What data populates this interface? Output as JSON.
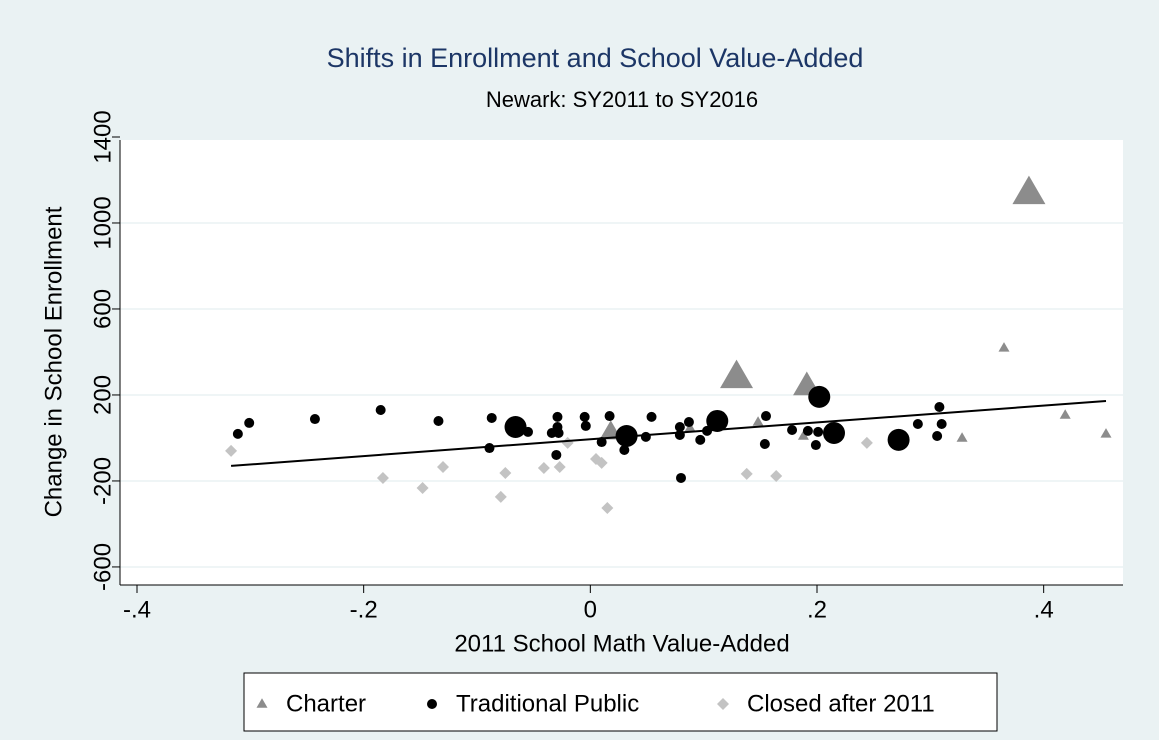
{
  "chart_data": {
    "type": "scatter",
    "title": "Shifts in Enrollment and School Value-Added",
    "subtitle": "Newark: SY2011 to SY2016",
    "x_label": "2011 School Math Value-Added",
    "y_label": "Change in School Enrollment",
    "xlim": [
      -0.415,
      0.47
    ],
    "ylim": [
      -684,
      1386
    ],
    "xticks": [
      {
        "value": -0.4,
        "label": "-.4"
      },
      {
        "value": -0.2,
        "label": "-.2"
      },
      0,
      {
        "value": 0.2,
        "label": ".2"
      },
      {
        "value": 0.4,
        "label": ".4"
      }
    ],
    "yticks": [
      -600,
      -200,
      200,
      600,
      1000,
      1400
    ],
    "grid": true,
    "legend": "bottom",
    "series": [
      {
        "name": "Charter",
        "color": "#8c8c8c",
        "marker": "triangle",
        "x": [
          0.387,
          0.365,
          0.129,
          0.191,
          0.419,
          0.455,
          0.328,
          0.188,
          0.018,
          0.148,
          0.088
        ],
        "y": [
          1140,
          419,
          284,
          242,
          107,
          19,
          0,
          9,
          28,
          74,
          47
        ],
        "sizes": [
          3,
          1,
          3,
          2.5,
          1,
          1,
          1,
          1,
          2,
          1,
          1
        ]
      },
      {
        "name": "Traditional Public",
        "color": "#000000",
        "marker": "circle",
        "x": [
          -0.311,
          -0.301,
          -0.243,
          -0.185,
          -0.134,
          -0.087,
          -0.089,
          -0.066,
          -0.055,
          -0.034,
          -0.029,
          -0.028,
          -0.03,
          -0.029,
          -0.005,
          -0.004,
          0.01,
          0.017,
          0.032,
          0.03,
          0.049,
          0.054,
          0.08,
          0.079,
          0.079,
          0.087,
          0.097,
          0.103,
          0.112,
          0.154,
          0.155,
          0.178,
          0.192,
          0.199,
          0.201,
          0.202,
          0.215,
          0.272,
          0.289,
          0.306,
          0.308,
          0.31
        ],
        "y": [
          19,
          70,
          88,
          130,
          79,
          93,
          -47,
          51,
          28,
          23,
          51,
          23,
          -79,
          98,
          98,
          56,
          -19,
          102,
          9,
          -56,
          5,
          98,
          -186,
          14,
          51,
          74,
          -9,
          33,
          79,
          -28,
          102,
          37,
          33,
          -33,
          28,
          191,
          23,
          -9,
          65,
          9,
          144,
          65
        ],
        "sizes": [
          1,
          1,
          1,
          1,
          1,
          1,
          1,
          2.2,
          1,
          1,
          1,
          1,
          1,
          1,
          1,
          1,
          1,
          1,
          2.2,
          1,
          1,
          1,
          1,
          1,
          1,
          1,
          1,
          1,
          2.2,
          1,
          1,
          1,
          1,
          1,
          1,
          2.2,
          2.2,
          2.2,
          1,
          1,
          1,
          1
        ]
      },
      {
        "name": "Closed after 2011",
        "color": "#c3c3c3",
        "marker": "diamond",
        "x": [
          -0.317,
          -0.183,
          -0.148,
          -0.13,
          -0.079,
          -0.075,
          -0.041,
          -0.027,
          -0.02,
          0.005,
          0.01,
          0.015,
          0.138,
          0.164,
          0.244
        ],
        "y": [
          -60,
          -186,
          -233,
          -135,
          -274,
          -163,
          -140,
          -135,
          -23,
          -98,
          -116,
          -326,
          -167,
          -177,
          -23
        ],
        "sizes": [
          1,
          1,
          1,
          1,
          1,
          1,
          1,
          1,
          1,
          1,
          1,
          1,
          1,
          1,
          1
        ]
      }
    ],
    "fit": {
      "color": "#000000",
      "x": [
        -0.317,
        0.455
      ],
      "y": [
        -130,
        172
      ]
    }
  }
}
